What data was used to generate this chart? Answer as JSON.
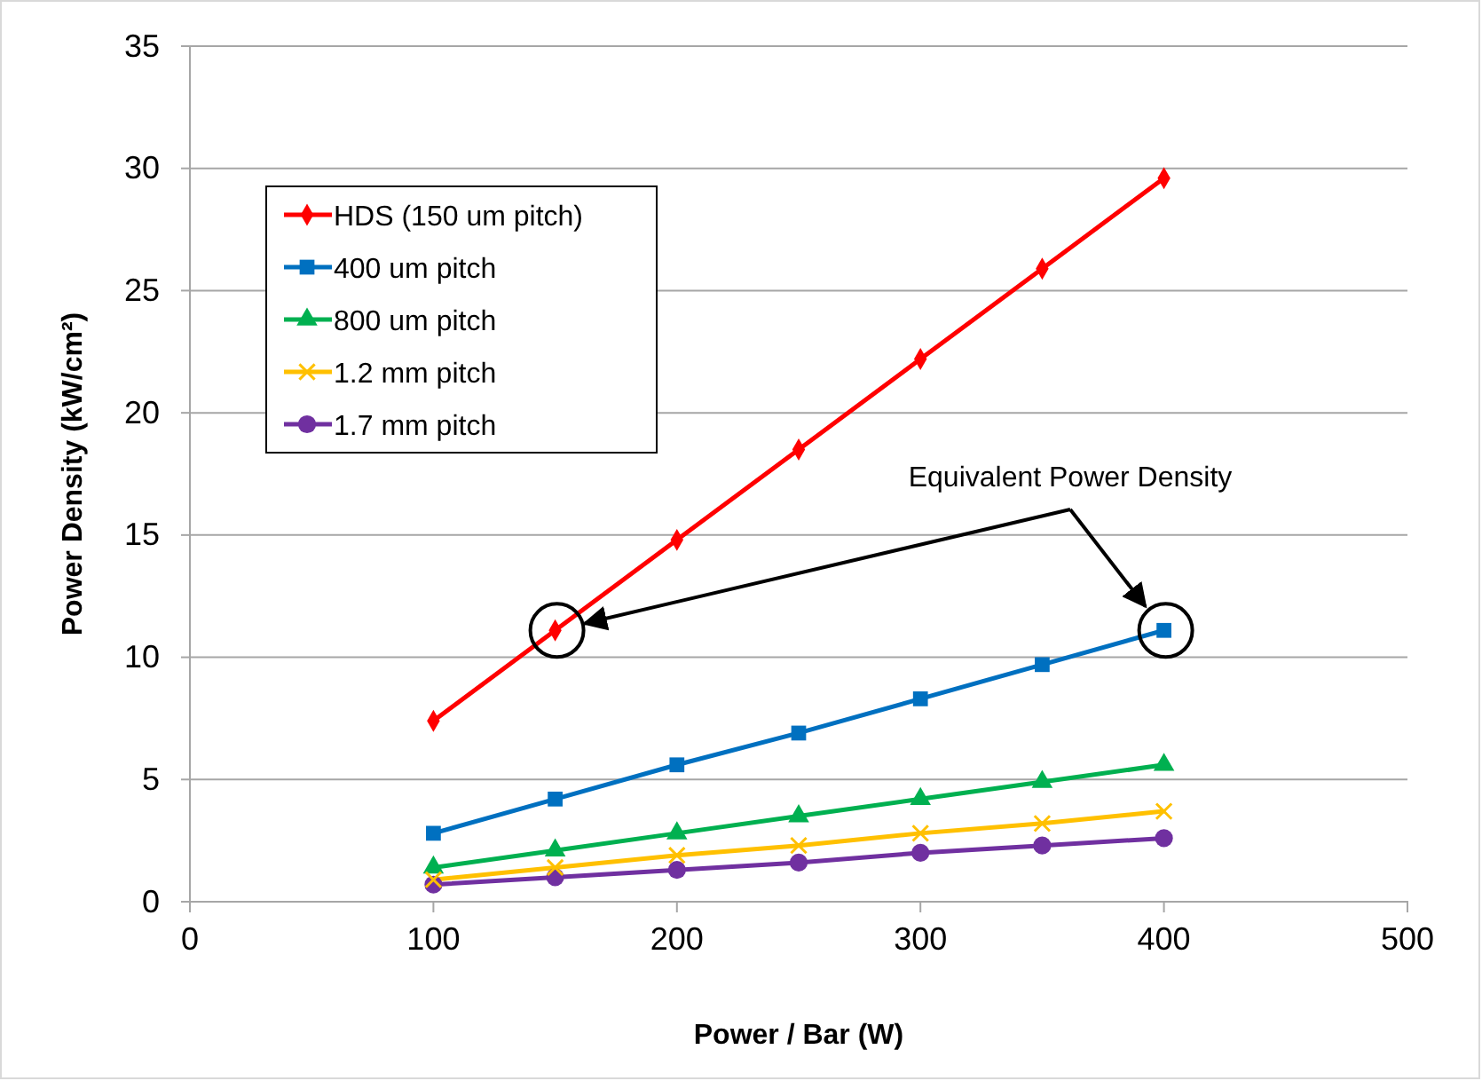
{
  "chart_data": {
    "type": "line",
    "xlabel": "Power / Bar (W)",
    "ylabel": "Power Density (kW/cm²)",
    "x": [
      100,
      150,
      200,
      250,
      300,
      350,
      400
    ],
    "series": [
      {
        "name": "HDS (150 um pitch)",
        "color": "#ff0000",
        "marker": "diamond",
        "values": [
          7.4,
          11.1,
          14.8,
          18.5,
          22.2,
          25.9,
          29.6
        ]
      },
      {
        "name": "400 um pitch",
        "color": "#0070c0",
        "marker": "square",
        "values": [
          2.8,
          4.2,
          5.6,
          6.9,
          8.3,
          9.7,
          11.1
        ]
      },
      {
        "name": "800 um pitch",
        "color": "#00b050",
        "marker": "triangle",
        "values": [
          1.4,
          2.1,
          2.8,
          3.5,
          4.2,
          4.9,
          5.6
        ]
      },
      {
        "name": "1.2 mm pitch",
        "color": "#ffc000",
        "marker": "cross",
        "values": [
          0.9,
          1.4,
          1.9,
          2.3,
          2.8,
          3.2,
          3.7
        ]
      },
      {
        "name": "1.7 mm pitch",
        "color": "#7030a0",
        "marker": "circle",
        "values": [
          0.7,
          1.0,
          1.3,
          1.6,
          2.0,
          2.3,
          2.6
        ]
      }
    ],
    "xlim": [
      0,
      500
    ],
    "xticks": [
      0,
      100,
      200,
      300,
      400,
      500
    ],
    "ylim": [
      0,
      35
    ],
    "yticks": [
      0,
      5,
      10,
      15,
      20,
      25,
      30,
      35
    ],
    "grid": "y",
    "legend": "top left",
    "line_style": "solid",
    "annotations": [
      "Equivalent Power Density"
    ]
  }
}
